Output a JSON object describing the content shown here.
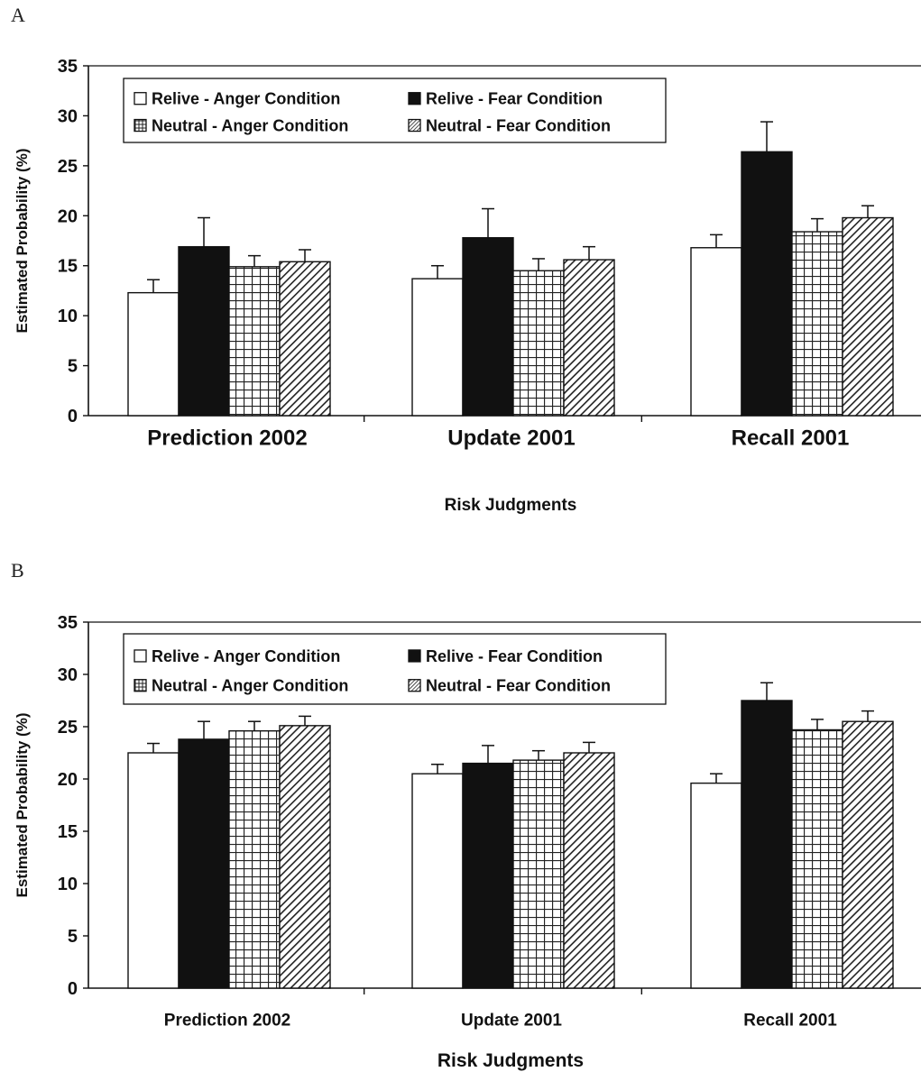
{
  "panels": [
    {
      "letter": "A"
    },
    {
      "letter": "B"
    }
  ],
  "legend_entries": [
    "Relive - Anger Condition",
    "Relive - Fear Condition",
    "Neutral - Anger Condition",
    "Neutral - Fear Condition"
  ],
  "colors": {
    "bar_edge": "#111111",
    "fill_solid": "#111111",
    "fill_open": "#ffffff"
  },
  "chart_data": [
    {
      "type": "bar",
      "panel": "A",
      "categories": [
        "Prediction 2002",
        "Update 2001",
        "Recall 2001"
      ],
      "series": [
        {
          "name": "Relive - Anger Condition",
          "pattern": "open",
          "values": [
            12.3,
            13.7,
            16.8
          ],
          "error": [
            1.3,
            1.3,
            1.3
          ]
        },
        {
          "name": "Relive - Fear Condition",
          "pattern": "solid",
          "values": [
            16.9,
            17.8,
            26.4
          ],
          "error": [
            2.9,
            2.9,
            3.0
          ]
        },
        {
          "name": "Neutral - Anger Condition",
          "pattern": "grid",
          "values": [
            14.9,
            14.5,
            18.4
          ],
          "error": [
            1.1,
            1.2,
            1.3
          ]
        },
        {
          "name": "Neutral - Fear Condition",
          "pattern": "hatch",
          "values": [
            15.4,
            15.6,
            19.8
          ],
          "error": [
            1.2,
            1.3,
            1.2
          ]
        }
      ],
      "xlabel": "Risk Judgments",
      "ylabel": "Estimated Probability (%)",
      "ylim": [
        0,
        35
      ],
      "yticks": [
        0,
        5,
        10,
        15,
        20,
        25,
        30,
        35
      ],
      "grid": false,
      "legend_position": "top-left"
    },
    {
      "type": "bar",
      "panel": "B",
      "categories": [
        "Prediction 2002",
        "Update 2001",
        "Recall 2001"
      ],
      "series": [
        {
          "name": "Relive - Anger Condition",
          "pattern": "open",
          "values": [
            22.5,
            20.5,
            19.6
          ],
          "error": [
            0.9,
            0.9,
            0.9
          ]
        },
        {
          "name": "Relive - Fear Condition",
          "pattern": "solid",
          "values": [
            23.8,
            21.5,
            27.5
          ],
          "error": [
            1.7,
            1.7,
            1.7
          ]
        },
        {
          "name": "Neutral - Anger Condition",
          "pattern": "grid",
          "values": [
            24.6,
            21.8,
            24.7
          ],
          "error": [
            0.9,
            0.9,
            1.0
          ]
        },
        {
          "name": "Neutral - Fear Condition",
          "pattern": "hatch",
          "values": [
            25.1,
            22.5,
            25.5
          ],
          "error": [
            0.9,
            1.0,
            1.0
          ]
        }
      ],
      "xlabel": "Risk Judgments",
      "ylabel": "Estimated Probability (%)",
      "ylim": [
        0,
        35
      ],
      "yticks": [
        0,
        5,
        10,
        15,
        20,
        25,
        30,
        35
      ],
      "grid": false,
      "legend_position": "top-left"
    }
  ]
}
